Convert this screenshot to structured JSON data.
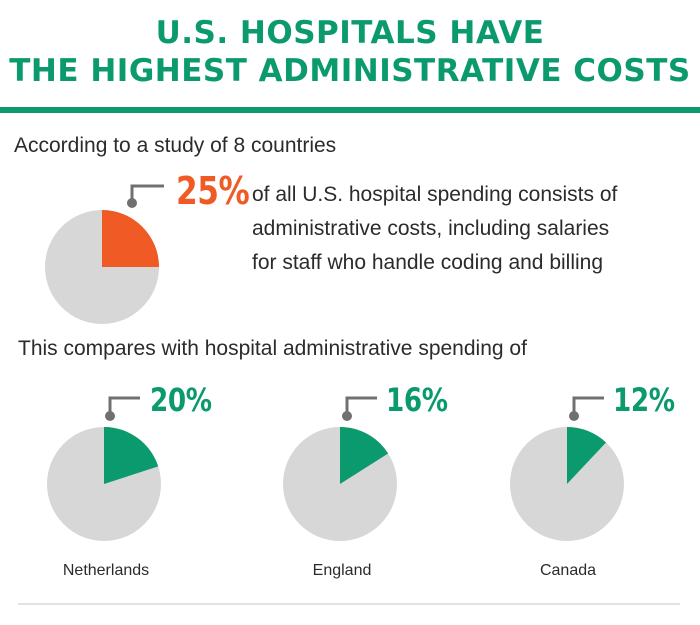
{
  "title": {
    "line1": "U.S. HOSPITALS HAVE",
    "line2": "THE HIGHEST ADMINISTRATIVE COSTS"
  },
  "intro_text": "According to a study of 8 countries",
  "compare_text": "This compares with hospital administrative spending of",
  "colors": {
    "accent_green": "#0b9a6e",
    "accent_orange": "#f05a24",
    "pie_gray": "#d7d7d7",
    "connector_gray": "#707070"
  },
  "chart_data": [
    {
      "type": "pie",
      "name": "U.S.",
      "value_label": "25%",
      "values": [
        25,
        75
      ],
      "description": [
        "of all U.S. hospital spending consists of",
        "administrative costs, including salaries",
        "for staff who handle coding and billing"
      ]
    },
    {
      "type": "pie",
      "name": "Netherlands",
      "value_label": "20%",
      "values": [
        20,
        80
      ]
    },
    {
      "type": "pie",
      "name": "England",
      "value_label": "16%",
      "values": [
        16,
        84
      ]
    },
    {
      "type": "pie",
      "name": "Canada",
      "value_label": "12%",
      "values": [
        12,
        88
      ]
    }
  ]
}
